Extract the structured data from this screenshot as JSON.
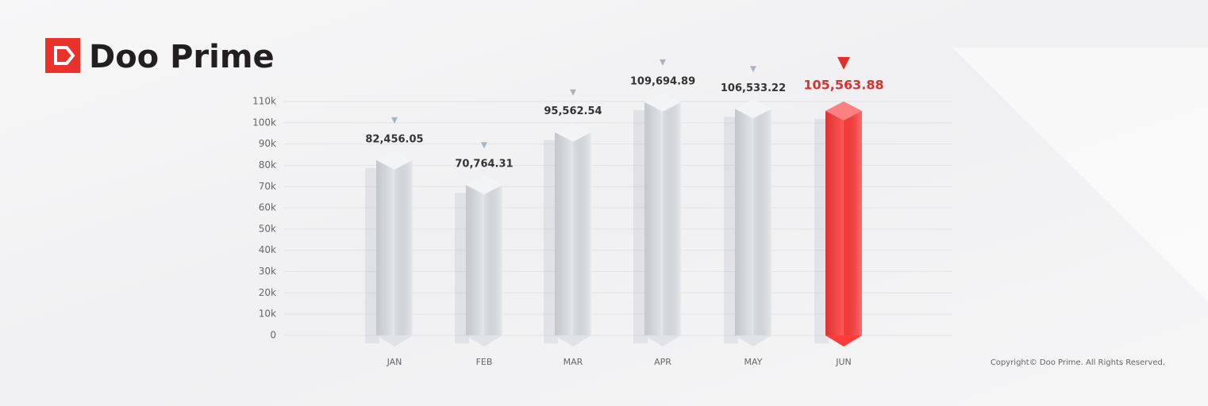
{
  "brand": "Doo Prime",
  "copyright": "Copyright© Doo Prime. All Rights Reserved.",
  "chart_data": {
    "type": "bar",
    "categories": [
      "JAN",
      "FEB",
      "MAR",
      "APR",
      "MAY",
      "JUN"
    ],
    "values": [
      82456.05,
      70764.31,
      95562.54,
      109694.89,
      106533.22,
      105563.88
    ],
    "value_labels": [
      "82,456.05",
      "70,764.31",
      "95,562.54",
      "109,694.89",
      "106,533.22",
      "105,563.88"
    ],
    "bar_colors": [
      "#dfe2e7",
      "#dfe2e7",
      "#dfe2e7",
      "#dfe2e7",
      "#dfe2e7",
      "#ff3b3b"
    ],
    "label_colors": [
      "#333333",
      "#333333",
      "#333333",
      "#333333",
      "#333333",
      "#e0302c"
    ],
    "ylim": [
      0,
      110000
    ],
    "yticks": [
      0,
      {
        "value": 10000,
        "label": "10k"
      },
      {
        "value": 20000,
        "label": "20k"
      },
      {
        "value": 30000,
        "label": "30k"
      },
      {
        "value": 40000,
        "label": "40k"
      },
      {
        "value": 50000,
        "label": "50k"
      },
      {
        "value": 60000,
        "label": "60k"
      },
      {
        "value": 70000,
        "label": "70k"
      },
      {
        "value": 80000,
        "label": "80k"
      },
      {
        "value": 90000,
        "label": "90k"
      },
      {
        "value": 100000,
        "label": "100k"
      },
      {
        "value": 110000,
        "label": "110k"
      }
    ],
    "grid": true
  }
}
